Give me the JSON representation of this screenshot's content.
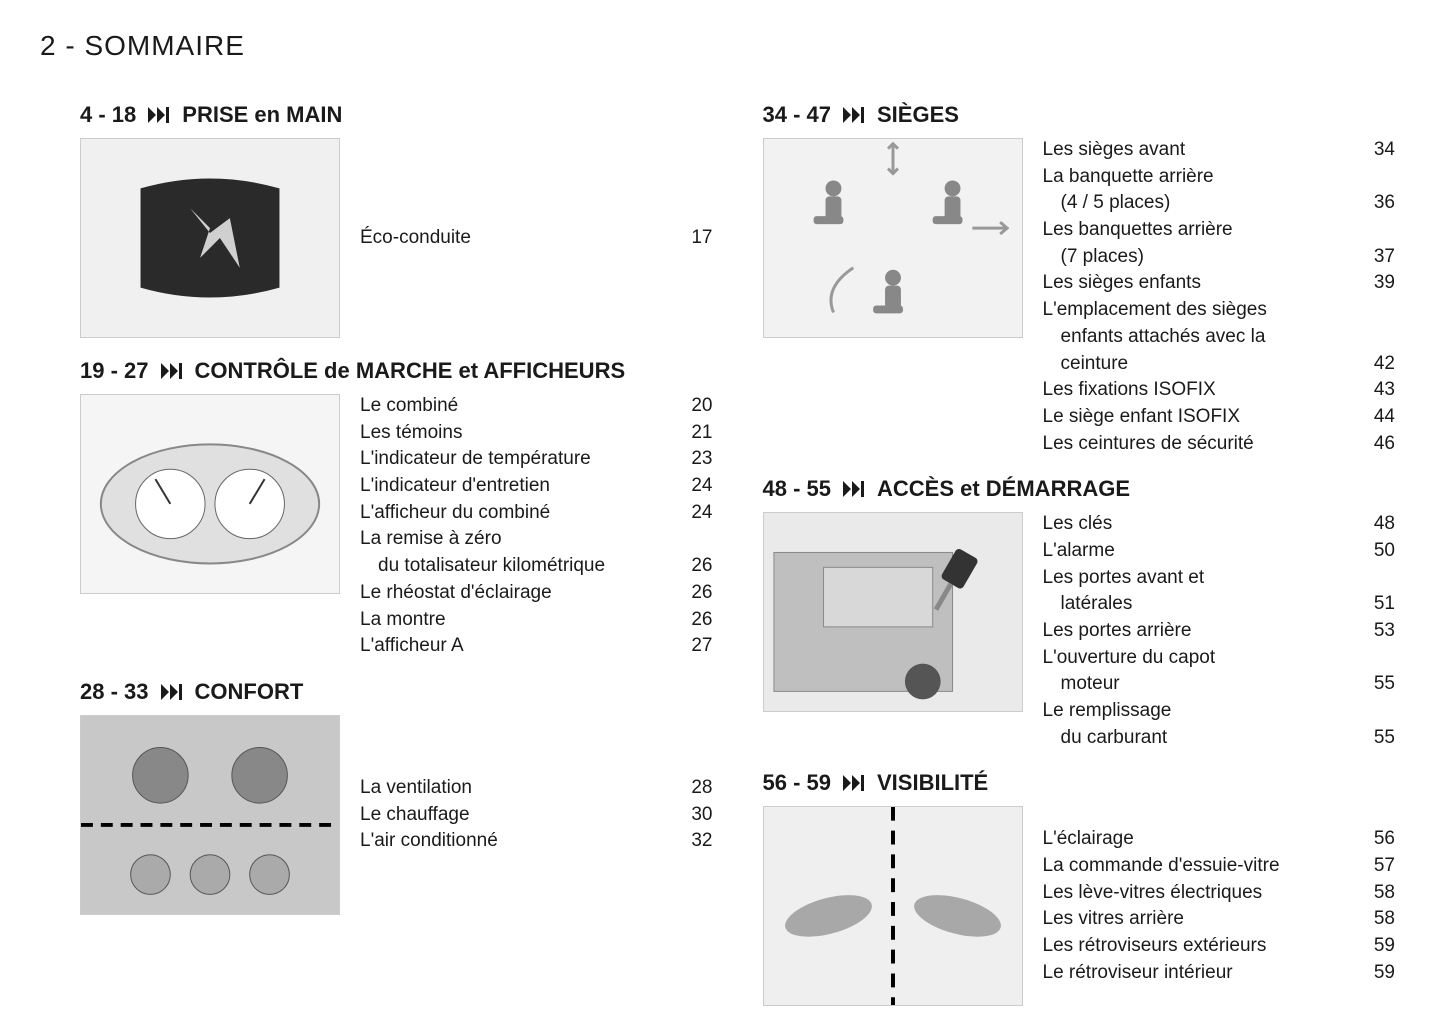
{
  "page_header": "2 - SOMMAIRE",
  "colors": {
    "text": "#1a1a1a",
    "background": "#ffffff",
    "thumb_bg": "#e8e8e8"
  },
  "sections": [
    {
      "range": "4 - 18",
      "title": "PRISE en MAIN",
      "thumb_alt": "Peugeot logo badge",
      "entries_centered": true,
      "entries": [
        {
          "label": "Éco-conduite",
          "page": "17"
        }
      ]
    },
    {
      "range": "19 - 27",
      "title": "CONTRÔLE de MARCHE et AFFICHEURS",
      "thumb_alt": "Instrument cluster",
      "entries": [
        {
          "label": "Le combiné",
          "page": "20"
        },
        {
          "label": "Les témoins",
          "page": "21"
        },
        {
          "label": "L'indicateur de température",
          "page": "23"
        },
        {
          "label": "L'indicateur d'entretien",
          "page": "24"
        },
        {
          "label": "L'afficheur du combiné",
          "page": "24"
        },
        {
          "label": "La remise à zéro",
          "page": ""
        },
        {
          "label": "du totalisateur kilométrique",
          "page": "26",
          "indent": true
        },
        {
          "label": "Le rhéostat d'éclairage",
          "page": "26"
        },
        {
          "label": "La montre",
          "page": "26"
        },
        {
          "label": "L'afficheur A",
          "page": "27"
        }
      ]
    },
    {
      "range": "28 - 33",
      "title": "CONFORT",
      "thumb_alt": "Climate controls",
      "entries_centered": true,
      "entries": [
        {
          "label": "La ventilation",
          "page": "28"
        },
        {
          "label": "Le chauffage",
          "page": "30"
        },
        {
          "label": "L'air conditionné",
          "page": "32"
        }
      ]
    },
    {
      "range": "34 - 47",
      "title": "SIÈGES",
      "thumb_alt": "Seat adjustment diagram",
      "entries": [
        {
          "label": "Les sièges avant",
          "page": "34"
        },
        {
          "label": "La banquette arrière",
          "page": ""
        },
        {
          "label": "(4 / 5 places)",
          "page": "36",
          "indent": true
        },
        {
          "label": "Les banquettes arrière",
          "page": ""
        },
        {
          "label": "(7 places)",
          "page": "37",
          "indent": true
        },
        {
          "label": "Les sièges enfants",
          "page": "39"
        },
        {
          "label": "L'emplacement des sièges",
          "page": ""
        },
        {
          "label": "enfants attachés avec la",
          "page": "",
          "indent": true
        },
        {
          "label": "ceinture",
          "page": "42",
          "indent": true
        },
        {
          "label": "Les fixations ISOFIX",
          "page": "43"
        },
        {
          "label": "Le siège enfant ISOFIX",
          "page": "44"
        },
        {
          "label": "Les ceintures de sécurité",
          "page": "46"
        }
      ]
    },
    {
      "range": "48 - 55",
      "title": "ACCÈS et DÉMARRAGE",
      "thumb_alt": "Car door and key",
      "entries": [
        {
          "label": "Les clés",
          "page": "48"
        },
        {
          "label": "L'alarme",
          "page": "50"
        },
        {
          "label": "Les portes avant et",
          "page": ""
        },
        {
          "label": "latérales",
          "page": "51",
          "indent": true
        },
        {
          "label": "Les portes arrière",
          "page": "53"
        },
        {
          "label": "L'ouverture du capot",
          "page": ""
        },
        {
          "label": "moteur",
          "page": "55",
          "indent": true
        },
        {
          "label": "Le remplissage",
          "page": ""
        },
        {
          "label": "du carburant",
          "page": "55",
          "indent": true
        }
      ]
    },
    {
      "range": "56 - 59",
      "title": "VISIBILITÉ",
      "thumb_alt": "Stalk controls",
      "entries_centered": true,
      "entries": [
        {
          "label": "L'éclairage",
          "page": "56"
        },
        {
          "label": "La commande d'essuie-vitre",
          "page": "57"
        },
        {
          "label": "Les lève-vitres électriques",
          "page": "58"
        },
        {
          "label": "Les vitres arrière",
          "page": "58"
        },
        {
          "label": "Les rétroviseurs extérieurs",
          "page": "59"
        },
        {
          "label": "Le rétroviseur intérieur",
          "page": "59"
        }
      ]
    }
  ]
}
